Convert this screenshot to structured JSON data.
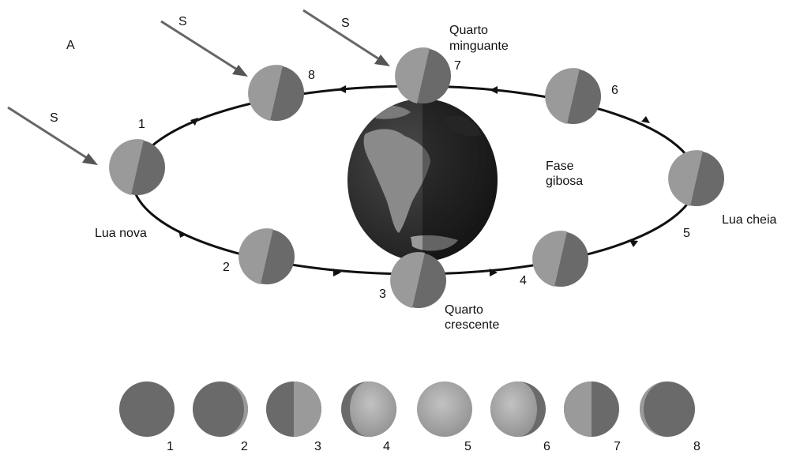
{
  "panel_label": "A",
  "sun_label": "S",
  "orbit_positions": [
    {
      "number": "1",
      "caption": "Lua nova"
    },
    {
      "number": "2",
      "caption": ""
    },
    {
      "number": "3",
      "caption_line1": "Quarto",
      "caption_line2": "crescente"
    },
    {
      "number": "4",
      "caption": ""
    },
    {
      "number": "5",
      "caption": "Lua cheia"
    },
    {
      "number": "6",
      "caption": ""
    },
    {
      "number": "7",
      "caption_line1": "Quarto",
      "caption_line2": "minguante"
    },
    {
      "number": "8",
      "caption": ""
    }
  ],
  "center_label": {
    "line1": "Fase",
    "line2": "gibosa"
  },
  "phase_row": [
    {
      "number": "1",
      "lit_fraction": 0.0,
      "waxing": true
    },
    {
      "number": "2",
      "lit_fraction": 0.1,
      "waxing": true
    },
    {
      "number": "3",
      "lit_fraction": 0.5,
      "waxing": true
    },
    {
      "number": "4",
      "lit_fraction": 0.85,
      "waxing": true
    },
    {
      "number": "5",
      "lit_fraction": 1.0,
      "waxing": true
    },
    {
      "number": "6",
      "lit_fraction": 0.85,
      "waxing": false
    },
    {
      "number": "7",
      "lit_fraction": 0.5,
      "waxing": false
    },
    {
      "number": "8",
      "lit_fraction": 0.1,
      "waxing": false
    }
  ],
  "colors": {
    "moon_light": "#9a9a9a",
    "moon_dark": "#6a6a6a",
    "moon_full": "#a8a8a8",
    "orbit": "#111111",
    "sun_ray": "#666666",
    "earth_ocean": "#2e2e2e",
    "earth_land": "#8a8a8a"
  }
}
